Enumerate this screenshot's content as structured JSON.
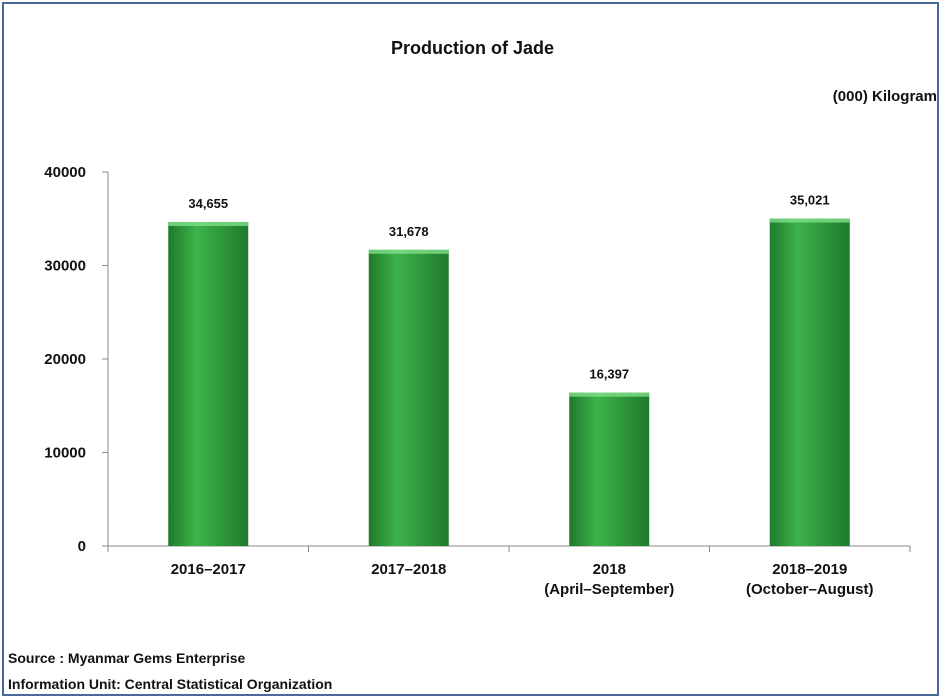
{
  "chart_data": {
    "type": "bar",
    "title": "Production of Jade",
    "unit_label": "(000) Kilogram",
    "categories": [
      [
        "2016–2017"
      ],
      [
        "2017–2018"
      ],
      [
        "2018",
        "(April–September)"
      ],
      [
        "2018–2019",
        "(October–August)"
      ]
    ],
    "values": [
      34655,
      31678,
      16397,
      35021
    ],
    "value_labels": [
      "34,655",
      "31,678",
      "16,397",
      "35,021"
    ],
    "y_ticks": [
      "0",
      "10000",
      "20000",
      "30000",
      "40000"
    ],
    "ylim": [
      0,
      40000
    ],
    "grid": false,
    "bar_color": "#3db34a",
    "bar_highlight": "#7fe08a",
    "bar_shadow": "#1f7a2b"
  },
  "footer": {
    "source": "Source : Myanmar Gems Enterprise",
    "info_unit": "Information Unit:  Central Statistical Organization"
  }
}
